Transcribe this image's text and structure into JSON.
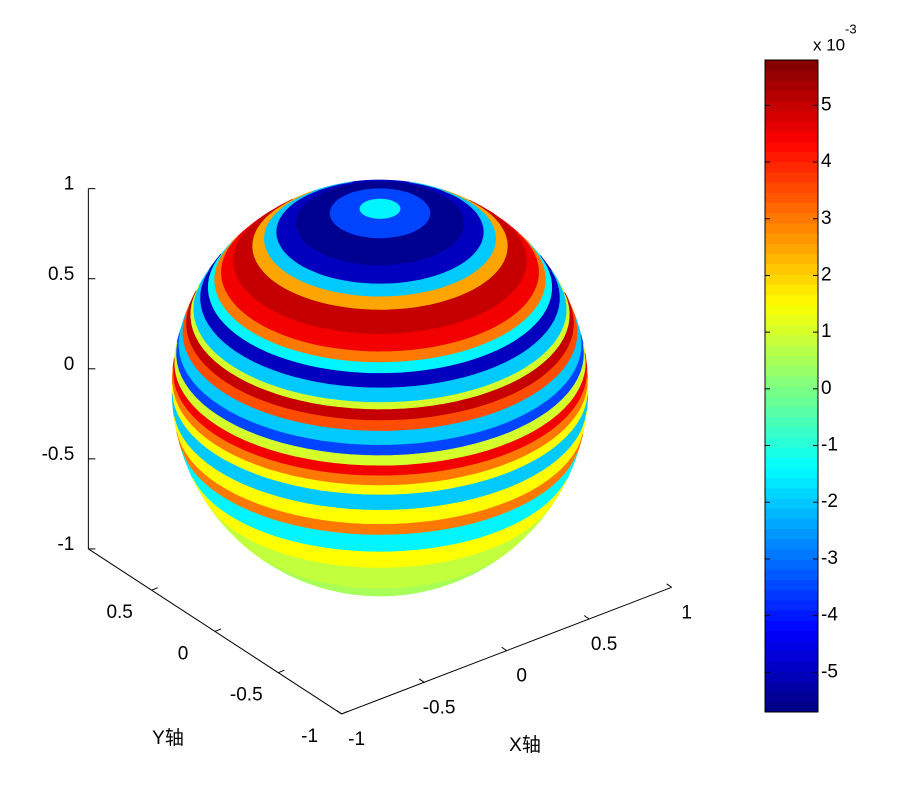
{
  "chart_data": {
    "type": "sphere",
    "xlabel": "X轴",
    "ylabel": "Y轴",
    "xlim": [
      -1,
      1
    ],
    "xticks": [
      -1,
      -0.5,
      0,
      0.5,
      1
    ],
    "ylim": [
      -1,
      1
    ],
    "yticks": [
      -1,
      -0.5,
      0,
      0.5
    ],
    "zlim": [
      -1,
      1
    ],
    "zticks": [
      -1,
      -0.5,
      0,
      0.5,
      1
    ],
    "colormap": "jet",
    "colorbar": {
      "clim": [
        -5.7,
        5.8
      ],
      "ticks": [
        -5,
        -4,
        -3,
        -2,
        -1,
        0,
        1,
        2,
        3,
        4,
        5
      ],
      "multiplier": "x 10",
      "exponent": "-3"
    },
    "surface": {
      "z_edges": [
        1,
        0.995,
        0.97,
        0.914,
        0.866,
        0.829,
        0.788,
        0.707,
        0.643,
        0.602,
        0.559,
        0.5,
        0.438,
        0.407,
        0.358,
        0.309,
        0.242,
        0.191,
        0.139,
        0.087,
        0.035,
        -0.017,
        -0.105,
        -0.191,
        -0.259,
        -0.375,
        -0.5,
        -0.707,
        -1
      ],
      "values": [
        -1.5,
        -3.5,
        -5.5,
        -5,
        -2,
        2.5,
        5,
        4.5,
        3,
        -1.5,
        -5,
        -2,
        1,
        5,
        3.5,
        -2,
        -3.5,
        1,
        4.5,
        3,
        1.5,
        -2,
        1.5,
        3,
        -1.5,
        1.5,
        0.8,
        0.5
      ]
    }
  }
}
